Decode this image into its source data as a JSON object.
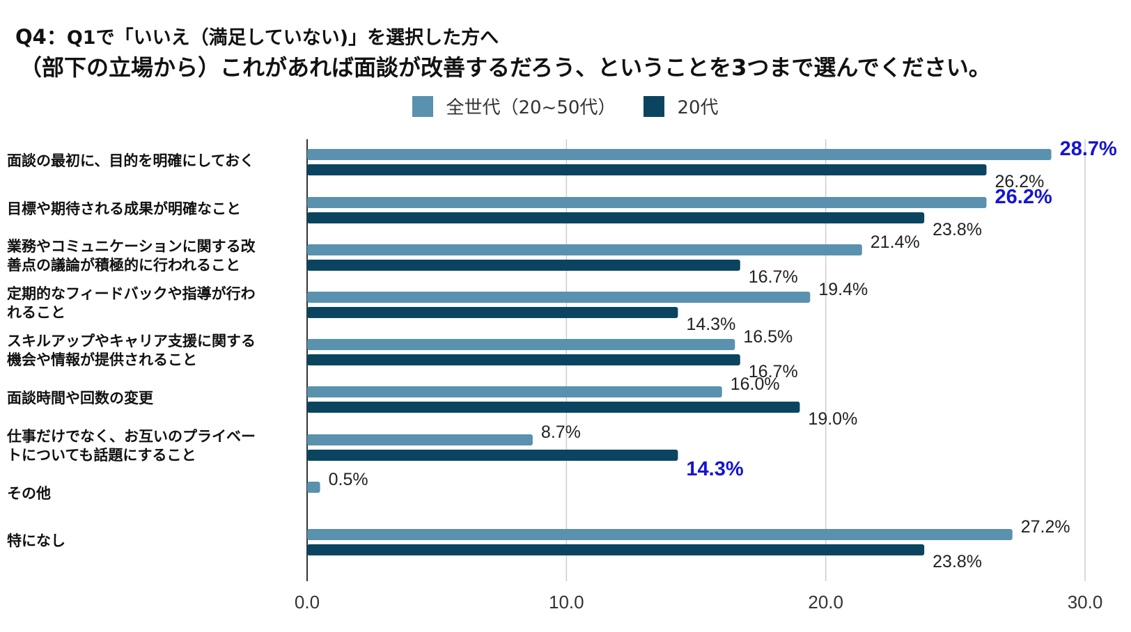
{
  "header": {
    "question_prefix": "Q4：",
    "question_line1": "Q1で「いいえ（満足していない)」を選択した方へ",
    "question_line2": "（部下の立場から）これがあれば面談が改善するだろう、ということを3つまで選んでください。"
  },
  "colors": {
    "all_ages": "#5a91ae",
    "twenties": "#0b4460",
    "highlight": "#1414d4",
    "grid": "#cccccc"
  },
  "chart_data": {
    "type": "bar",
    "orientation": "horizontal",
    "title": "Q4：Q1で「いいえ（満足していない)」を選択した方へ（部下の立場から）これがあれば面談が改善するだろう、ということを3つまで選んでください。",
    "categories": [
      "面談の最初に、目的を明確にしておく",
      "目標や期待される成果が明確なこと",
      "業務やコミュニケーションに関する改善点の議論が積極的に行われること",
      "定期的なフィードバックや指導が行われること",
      "スキルアップやキャリア支援に関する機会や情報が提供されること",
      "面談時間や回数の変更",
      "仕事だけでなく、お互いのプライベートについても話題にすること",
      "その他",
      "特になし"
    ],
    "category_lines": [
      [
        "面談の最初に、目的を明確にしておく"
      ],
      [
        "目標や期待される成果が明確なこと"
      ],
      [
        "業務やコミュニケーションに関する改",
        "善点の議論が積極的に行われること"
      ],
      [
        "定期的なフィードバックや指導が行わ",
        "れること"
      ],
      [
        "スキルアップやキャリア支援に関する",
        "機会や情報が提供されること"
      ],
      [
        "面談時間や回数の変更"
      ],
      [
        "仕事だけでなく、お互いのプライベー",
        "トについても話題にすること"
      ],
      [
        "その他"
      ],
      [
        "特になし"
      ]
    ],
    "series": [
      {
        "name": "全世代（20~50代）",
        "values": [
          28.7,
          26.2,
          21.4,
          19.4,
          16.5,
          16.0,
          8.7,
          0.5,
          27.2
        ],
        "labels": [
          "28.7%",
          "26.2%",
          "21.4%",
          "19.4%",
          "16.5%",
          "16.0%",
          "8.7%",
          "0.5%",
          "27.2%"
        ],
        "highlight": [
          true,
          true,
          false,
          false,
          false,
          false,
          false,
          false,
          false
        ]
      },
      {
        "name": "20代",
        "values": [
          26.2,
          23.8,
          16.7,
          14.3,
          16.7,
          19.0,
          14.3,
          null,
          23.8
        ],
        "labels": [
          "26.2%",
          "23.8%",
          "16.7%",
          "14.3%",
          "16.7%",
          "19.0%",
          "14.3%",
          "",
          "23.8%"
        ],
        "highlight": [
          false,
          false,
          false,
          false,
          false,
          false,
          true,
          false,
          false
        ]
      }
    ],
    "xlim": [
      0,
      30
    ],
    "xticks": [
      0,
      10,
      20,
      30
    ],
    "xtick_labels": [
      "0.0",
      "10.0",
      "20.0",
      "30.0"
    ],
    "grid": true,
    "legend_position": "top-center",
    "xlabel": "",
    "ylabel": ""
  }
}
